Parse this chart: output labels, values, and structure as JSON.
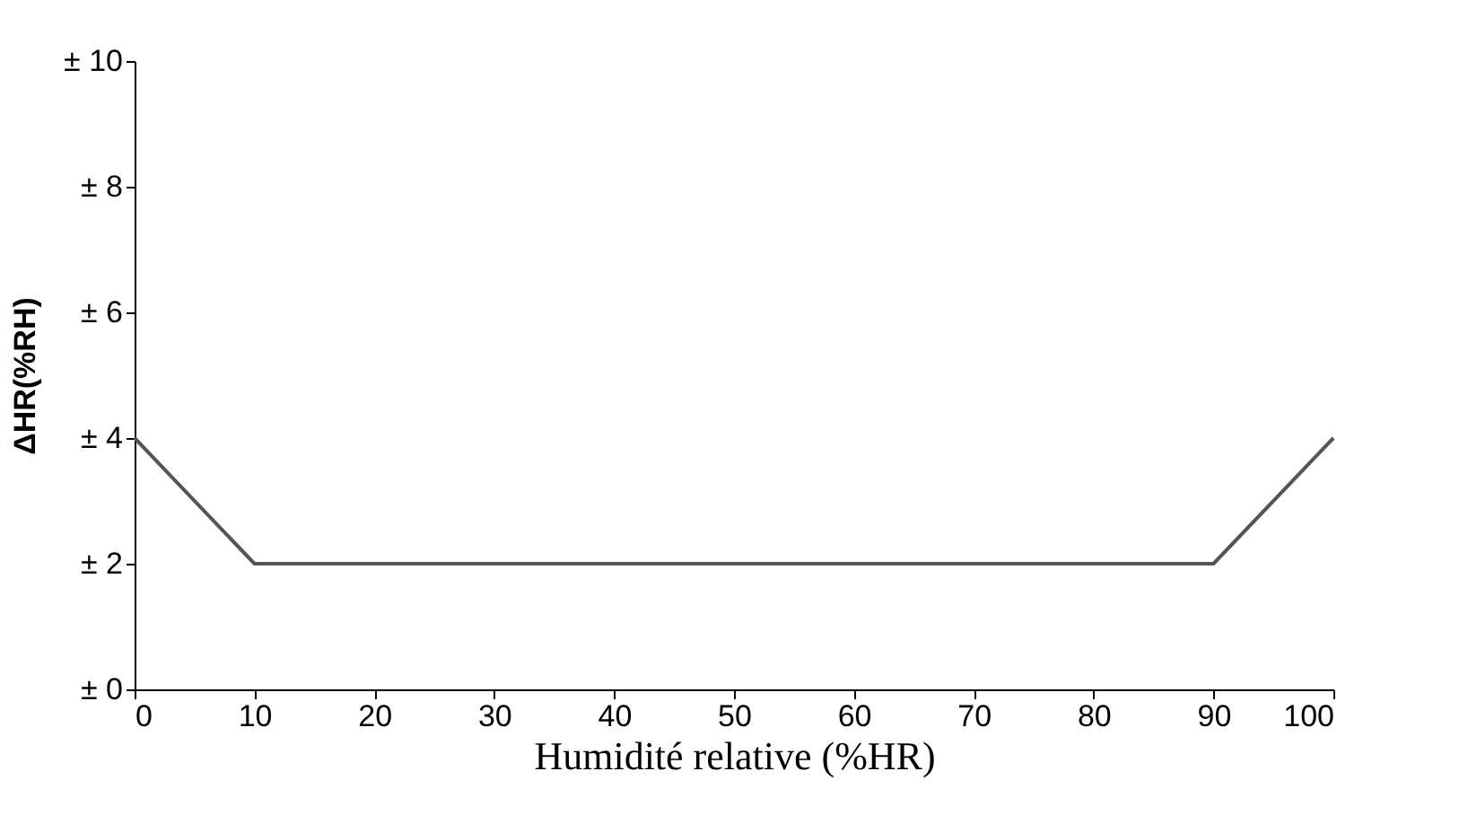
{
  "chart_data": {
    "type": "line",
    "xlabel": "Humidité relative (%HR)",
    "ylabel": "ΔHR(%RH)",
    "x": [
      0,
      10,
      90,
      100
    ],
    "series": [
      {
        "color": "#555555",
        "values": [
          4,
          2,
          2,
          4
        ]
      }
    ],
    "xlim": [
      0,
      100
    ],
    "xticks": [
      0,
      10,
      20,
      30,
      40,
      50,
      60,
      70,
      80,
      90,
      100
    ],
    "ylim": [
      0,
      10
    ],
    "yticks": [
      {
        "value": 0,
        "label": "± 0"
      },
      {
        "value": 2,
        "label": "± 2"
      },
      {
        "value": 4,
        "label": "± 4"
      },
      {
        "value": 6,
        "label": "± 6"
      },
      {
        "value": 8,
        "label": "± 8"
      },
      {
        "value": 10,
        "label": "± 10"
      }
    ],
    "grid": false,
    "marker": "none",
    "line_style": "solid"
  }
}
